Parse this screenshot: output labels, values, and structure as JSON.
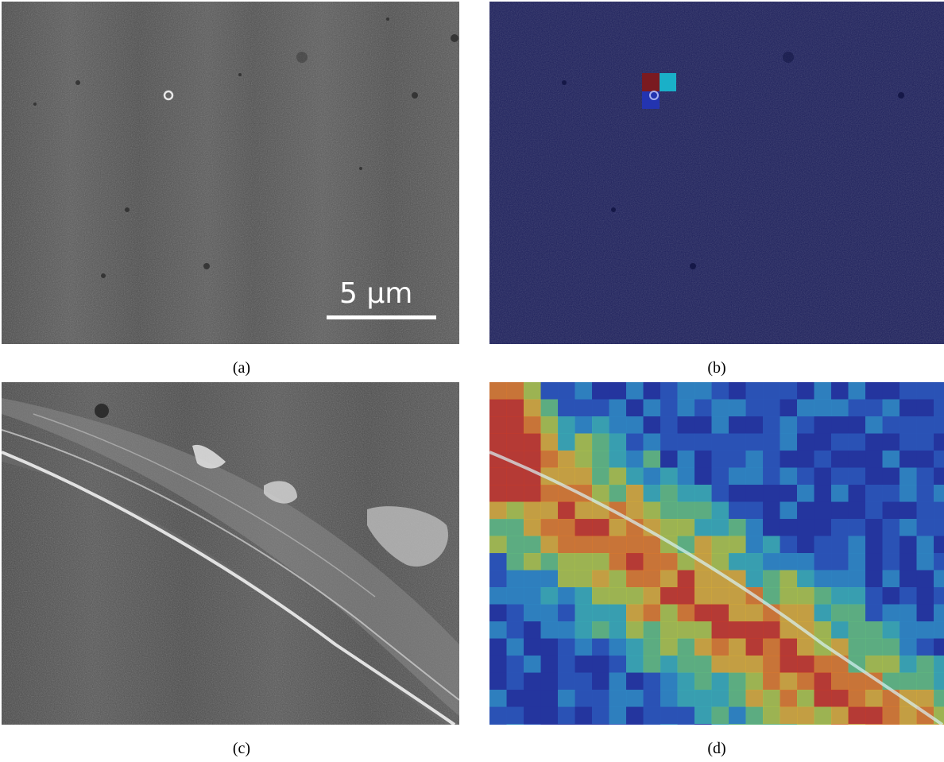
{
  "figure": {
    "panels": [
      {
        "caption": "(a)"
      },
      {
        "caption": "(b)"
      },
      {
        "caption": "(c)"
      },
      {
        "caption": "(d)"
      }
    ],
    "scale_bar": {
      "label": "5 µm"
    },
    "colors": {
      "sem_gray": "#555555",
      "overlay_navy": "#1c1f5c",
      "heat_red": "#c0282a",
      "heat_cyan": "#1ab0c8",
      "heat_blue": "#2334b0"
    }
  }
}
